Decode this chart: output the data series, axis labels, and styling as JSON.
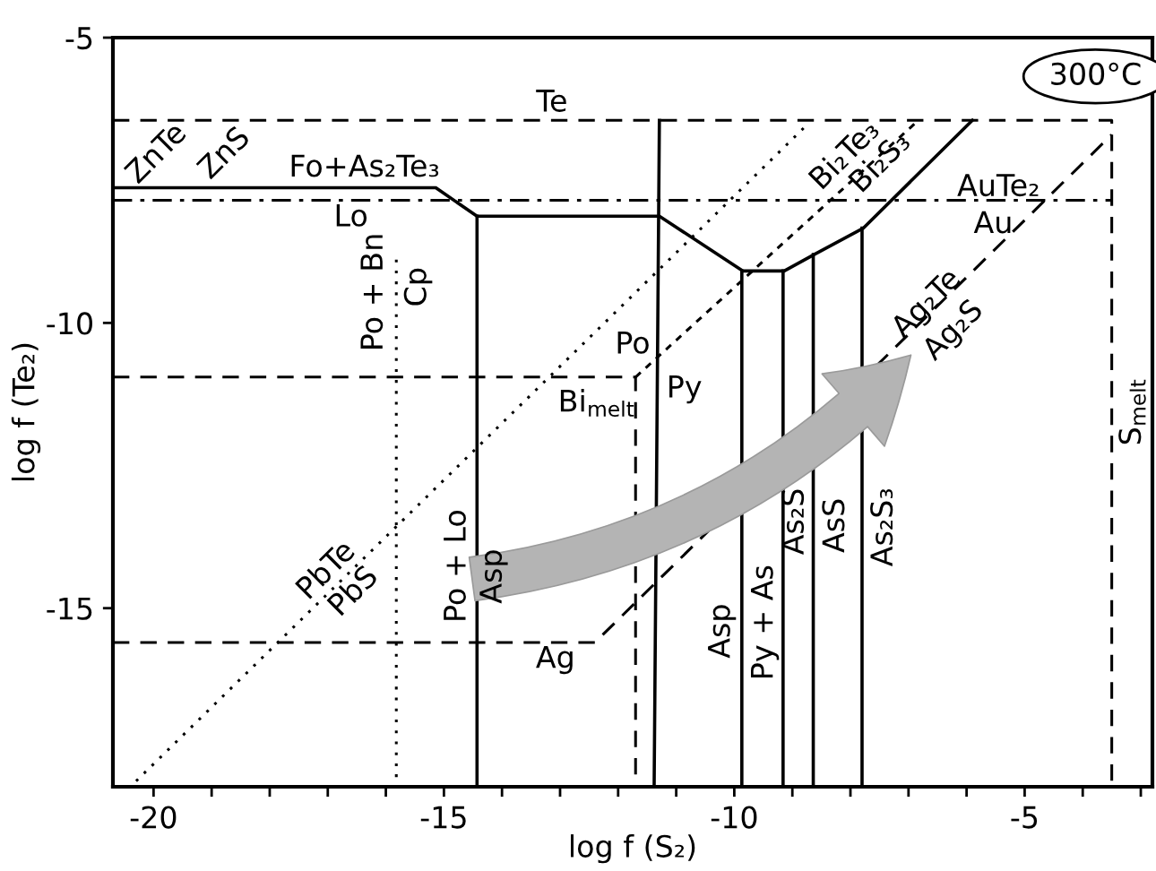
{
  "chart_data": {
    "type": "line",
    "xlabel": "log f (S₂)",
    "ylabel": "log f (Te₂)",
    "xlim": [
      -20.7,
      -2.8
    ],
    "ylim": [
      -18.13,
      -5
    ],
    "xticks": [
      {
        "value": -20,
        "label": "-20"
      },
      {
        "value": -19,
        "label": null
      },
      {
        "value": -18,
        "label": null
      },
      {
        "value": -17,
        "label": null
      },
      {
        "value": -16,
        "label": null
      },
      {
        "value": -15,
        "label": "-15"
      },
      {
        "value": -14,
        "label": null
      },
      {
        "value": -13,
        "label": null
      },
      {
        "value": -12,
        "label": null
      },
      {
        "value": -11,
        "label": null
      },
      {
        "value": -10,
        "label": "-10"
      },
      {
        "value": -9,
        "label": null
      },
      {
        "value": -8,
        "label": null
      },
      {
        "value": -7,
        "label": null
      },
      {
        "value": -6,
        "label": null
      },
      {
        "value": -5,
        "label": "-5"
      },
      {
        "value": -4,
        "label": null
      },
      {
        "value": -3,
        "label": null
      }
    ],
    "yticks": [
      {
        "value": -5,
        "label": "-5"
      },
      {
        "value": -10,
        "label": "-10"
      },
      {
        "value": -15,
        "label": "-15"
      }
    ],
    "grid": false,
    "legend": false,
    "marker": "none",
    "series": [
      {
        "color": "#000000",
        "line_style": "dashed",
        "x": [
          -20.7,
          -3.5,
          -3.5
        ],
        "values": [
          -6.45,
          -6.45,
          -18.13
        ]
      },
      {
        "color": "#000000",
        "line_style": "dashed",
        "x": [
          -20.7,
          -12.4,
          -3.5
        ],
        "values": [
          -15.6,
          -15.6,
          -6.7
        ]
      },
      {
        "color": "#000000",
        "line_style": "dashed",
        "x": [
          -20.7,
          -11.7,
          -11.7
        ],
        "values": [
          -10.95,
          -10.95,
          -18.13
        ]
      },
      {
        "color": "#000000",
        "line_style": "dashdot",
        "x": [
          -20.7,
          -3.5
        ],
        "values": [
          -7.85,
          -7.85
        ]
      },
      {
        "color": "#000000",
        "line_style": "solid",
        "x": [
          -20.7,
          -15.14,
          -14.43,
          -11.29,
          -9.85,
          -9.14,
          -8.62,
          -7.78,
          -5.9
        ],
        "values": [
          -7.63,
          -7.63,
          -8.13,
          -8.13,
          -9.09,
          -9.09,
          -8.8,
          -8.34,
          -6.45
        ]
      },
      {
        "color": "#000000",
        "line_style": "solid",
        "x": [
          -14.43,
          -14.43
        ],
        "values": [
          -8.13,
          -18.13
        ]
      },
      {
        "color": "#000000",
        "line_style": "solid",
        "x": [
          -11.29,
          -11.38
        ],
        "values": [
          -6.45,
          -18.13
        ]
      },
      {
        "color": "#000000",
        "line_style": "solid",
        "x": [
          -9.87,
          -9.87
        ],
        "values": [
          -9.09,
          -18.13
        ]
      },
      {
        "color": "#000000",
        "line_style": "solid",
        "x": [
          -9.16,
          -9.16
        ],
        "values": [
          -9.09,
          -18.13
        ]
      },
      {
        "color": "#000000",
        "line_style": "solid",
        "x": [
          -8.64,
          -8.64
        ],
        "values": [
          -8.8,
          -18.13
        ]
      },
      {
        "color": "#000000",
        "line_style": "solid",
        "x": [
          -7.8,
          -7.8
        ],
        "values": [
          -8.34,
          -18.13
        ]
      },
      {
        "color": "#000000",
        "line_style": "dotted",
        "x": [
          -15.82,
          -15.82
        ],
        "values": [
          -8.89,
          -18.13
        ]
      },
      {
        "color": "#000000",
        "line_style": "dotted",
        "x": [
          -20.3,
          -8.77
        ],
        "values": [
          -18.03,
          -6.55
        ]
      },
      {
        "color": "#000000",
        "line_style": "dashed_fine",
        "x": [
          -11.7,
          -6.83
        ],
        "values": [
          -10.95,
          -6.45
        ]
      }
    ],
    "annotations": [
      "Te",
      "ZnTe",
      "ZnS",
      "Fo+As₂Te₃",
      "Lo",
      "Po + Bn",
      "Cp",
      "Po",
      "Py",
      "Bi$_{melt}$",
      "Bi₂Te₃",
      "Bi₂S₃",
      "AuTe₂",
      "Au",
      "Ag₂Te",
      "Ag₂S",
      "S$_{melt}$",
      "PbTe",
      "PbS",
      "Po + Lo",
      "Asp",
      "Ag",
      "Asp",
      "Py + As",
      "As₂S",
      "AsS",
      "As₂S₃",
      "300°C"
    ]
  }
}
